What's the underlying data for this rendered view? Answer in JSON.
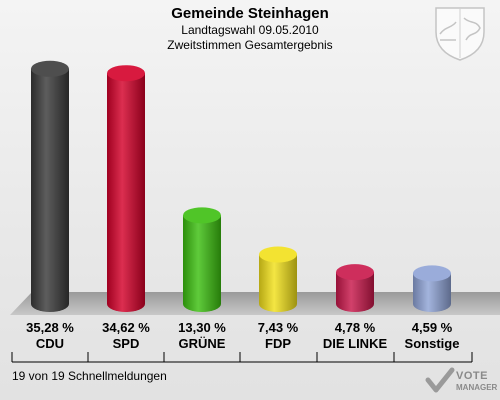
{
  "header": {
    "title": "Gemeinde Steinhagen",
    "subtitle": "Landtagswahl 09.05.2010",
    "subtitle2": "Zweitstimmen Gesamtergebnis"
  },
  "footer": {
    "status": "19 von 19 Schnellmeldungen"
  },
  "branding": {
    "logo_line1": "VOTE",
    "logo_line2": "MANAGER",
    "crest_icon": "coat-of-arms-icon"
  },
  "chart_data": {
    "type": "bar",
    "title": "Gemeinde Steinhagen",
    "subtitle": "Landtagswahl 09.05.2010 Zweitstimmen Gesamtergebnis",
    "categories": [
      "CDU",
      "SPD",
      "GRÜNE",
      "FDP",
      "DIE LINKE",
      "Sonstige"
    ],
    "values": [
      35.28,
      34.62,
      13.3,
      7.43,
      4.78,
      4.59
    ],
    "value_labels": [
      "35,28 %",
      "34,62 %",
      "13,30 %",
      "7,43 %",
      "4,78 %",
      "4,59 %"
    ],
    "colors": [
      "#3a3a3a",
      "#d4002a",
      "#3cbf10",
      "#f2e01a",
      "#c8174a",
      "#8fa3d6"
    ],
    "ylim": [
      0,
      36
    ],
    "grid": false,
    "legend": "none"
  }
}
